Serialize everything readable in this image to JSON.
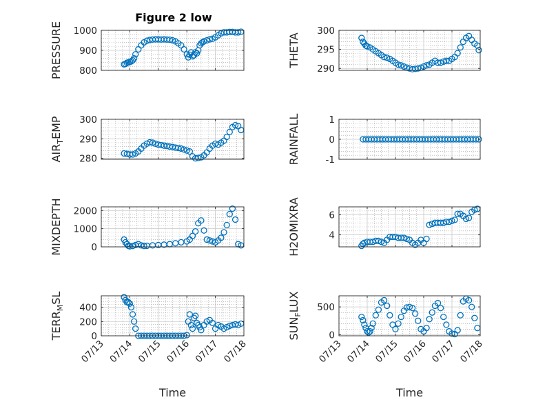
{
  "title": "Figure 2 low",
  "colors": {
    "marker": "#0072BD",
    "axis": "#262626",
    "grid": "#9e9e9e",
    "background": "#ffffff"
  },
  "chart_data": [
    {
      "type": "scatter",
      "title": "Figure 2 low",
      "ylabel": "PRESSURE",
      "xlabel": "",
      "xlim": [
        0,
        5
      ],
      "ylim": [
        800,
        1000
      ],
      "yticks": [
        800,
        900,
        1000
      ],
      "grid": true,
      "x": [
        0.8,
        0.85,
        0.9,
        0.95,
        1.0,
        1.05,
        1.1,
        1.15,
        1.2,
        1.3,
        1.4,
        1.5,
        1.6,
        1.7,
        1.8,
        1.9,
        2.0,
        2.1,
        2.2,
        2.3,
        2.4,
        2.5,
        2.6,
        2.7,
        2.8,
        2.9,
        3.0,
        3.05,
        3.1,
        3.15,
        3.2,
        3.25,
        3.3,
        3.35,
        3.4,
        3.45,
        3.5,
        3.55,
        3.6,
        3.7,
        3.8,
        3.9,
        4.0,
        4.1,
        4.2,
        4.3,
        4.4,
        4.5,
        4.6,
        4.7,
        4.8,
        4.9
      ],
      "y": [
        830,
        832,
        838,
        840,
        842,
        845,
        850,
        860,
        880,
        905,
        925,
        940,
        948,
        952,
        954,
        955,
        955,
        954,
        955,
        954,
        953,
        950,
        945,
        935,
        925,
        905,
        880,
        865,
        878,
        890,
        870,
        875,
        890,
        885,
        900,
        925,
        935,
        940,
        945,
        950,
        955,
        958,
        965,
        975,
        985,
        990,
        990,
        992,
        992,
        990,
        990,
        993
      ]
    },
    {
      "type": "scatter",
      "ylabel": "THETA",
      "xlabel": "",
      "xlim": [
        0,
        5
      ],
      "ylim": [
        289.5,
        300
      ],
      "yticks": [
        290,
        295,
        300
      ],
      "grid": true,
      "x": [
        0.8,
        0.85,
        0.9,
        0.95,
        1.0,
        1.1,
        1.2,
        1.3,
        1.4,
        1.5,
        1.6,
        1.7,
        1.8,
        1.9,
        2.0,
        2.1,
        2.2,
        2.3,
        2.4,
        2.5,
        2.6,
        2.7,
        2.8,
        2.9,
        3.0,
        3.1,
        3.2,
        3.3,
        3.4,
        3.5,
        3.6,
        3.7,
        3.8,
        3.9,
        4.0,
        4.1,
        4.2,
        4.3,
        4.4,
        4.5,
        4.6,
        4.7,
        4.8,
        4.9,
        4.95
      ],
      "y": [
        298,
        297,
        296.5,
        296,
        295.8,
        295.5,
        295,
        294.5,
        294,
        293.5,
        293,
        292.8,
        292.5,
        292,
        291.5,
        291,
        290.8,
        290.5,
        290.2,
        290,
        289.8,
        289.9,
        290,
        290.2,
        290.5,
        290.8,
        291,
        291.5,
        292,
        291.5,
        291.5,
        291.8,
        292,
        292,
        292.5,
        293,
        294,
        295.5,
        297,
        298,
        298.5,
        297.5,
        296.5,
        296,
        294.8
      ]
    },
    {
      "type": "scatter",
      "ylabel": "AIR_TEMP",
      "xlabel": "",
      "xlim": [
        0,
        5
      ],
      "ylim": [
        279.5,
        300
      ],
      "yticks": [
        280,
        290,
        300
      ],
      "grid": true,
      "x": [
        0.8,
        0.9,
        1.0,
        1.1,
        1.2,
        1.3,
        1.4,
        1.5,
        1.6,
        1.7,
        1.8,
        1.9,
        2.0,
        2.1,
        2.2,
        2.3,
        2.4,
        2.5,
        2.6,
        2.7,
        2.8,
        2.9,
        3.0,
        3.1,
        3.2,
        3.3,
        3.4,
        3.5,
        3.6,
        3.7,
        3.8,
        3.9,
        4.0,
        4.1,
        4.2,
        4.3,
        4.4,
        4.5,
        4.6,
        4.7,
        4.8,
        4.9
      ],
      "y": [
        282.5,
        282.3,
        282,
        282,
        282.5,
        283.5,
        285,
        286.5,
        287.5,
        288.2,
        288,
        287.5,
        287,
        286.8,
        286.5,
        286.3,
        286,
        285.8,
        285.5,
        285.3,
        285,
        284.5,
        284,
        283.5,
        281,
        280,
        280.2,
        280.5,
        281.5,
        283,
        285,
        286.5,
        287.5,
        287,
        288,
        289,
        291,
        293.5,
        296,
        297,
        296.5,
        294.5
      ]
    },
    {
      "type": "scatter",
      "ylabel": "RAINFALL",
      "xlabel": "",
      "xlim": [
        0,
        5
      ],
      "ylim": [
        -1,
        1
      ],
      "yticks": [
        -1,
        0,
        1
      ],
      "grid": true,
      "x": [
        0.85,
        0.95,
        1.05,
        1.15,
        1.25,
        1.35,
        1.45,
        1.55,
        1.65,
        1.75,
        1.85,
        1.95,
        2.05,
        2.15,
        2.25,
        2.35,
        2.45,
        2.55,
        2.65,
        2.75,
        2.85,
        2.95,
        3.05,
        3.15,
        3.25,
        3.35,
        3.45,
        3.55,
        3.65,
        3.75,
        3.85,
        3.95,
        4.05,
        4.15,
        4.25,
        4.35,
        4.45,
        4.55,
        4.65,
        4.75,
        4.85,
        4.95
      ],
      "y": [
        0,
        0,
        0,
        0,
        0,
        0,
        0,
        0,
        0,
        0,
        0,
        0,
        0,
        0,
        0,
        0,
        0,
        0,
        0,
        0,
        0,
        0,
        0,
        0,
        0,
        0,
        0,
        0,
        0,
        0,
        0,
        0,
        0,
        0,
        0,
        0,
        0,
        0,
        0,
        0,
        0,
        0
      ]
    },
    {
      "type": "scatter",
      "ylabel": "MIXDEPTH",
      "xlabel": "",
      "xlim": [
        0,
        5
      ],
      "ylim": [
        0,
        2200
      ],
      "yticks": [
        0,
        1000,
        2000
      ],
      "grid": true,
      "x": [
        0.8,
        0.85,
        0.9,
        0.95,
        1.0,
        1.1,
        1.2,
        1.3,
        1.4,
        1.5,
        1.6,
        1.8,
        2.0,
        2.2,
        2.4,
        2.6,
        2.8,
        3.0,
        3.1,
        3.2,
        3.3,
        3.4,
        3.5,
        3.6,
        3.7,
        3.8,
        3.9,
        4.0,
        4.1,
        4.2,
        4.3,
        4.4,
        4.5,
        4.6,
        4.7,
        4.8,
        4.9
      ],
      "y": [
        400,
        250,
        150,
        60,
        30,
        50,
        100,
        150,
        80,
        50,
        60,
        80,
        100,
        120,
        150,
        200,
        250,
        300,
        400,
        600,
        850,
        1300,
        1450,
        900,
        400,
        350,
        300,
        250,
        350,
        500,
        800,
        1200,
        1800,
        2100,
        1500,
        150,
        80
      ]
    },
    {
      "type": "scatter",
      "ylabel": "H2OMIXRA",
      "xlabel": "",
      "xlim": [
        0,
        5
      ],
      "ylim": [
        2.8,
        6.8
      ],
      "yticks": [
        4,
        6
      ],
      "grid": true,
      "x": [
        0.8,
        0.85,
        0.9,
        1.0,
        1.1,
        1.2,
        1.3,
        1.4,
        1.5,
        1.6,
        1.7,
        1.8,
        1.9,
        2.0,
        2.1,
        2.2,
        2.3,
        2.4,
        2.5,
        2.6,
        2.7,
        2.8,
        2.9,
        3.0,
        3.1,
        3.2,
        3.3,
        3.4,
        3.5,
        3.6,
        3.7,
        3.8,
        3.9,
        4.0,
        4.1,
        4.2,
        4.3,
        4.4,
        4.5,
        4.6,
        4.7,
        4.8,
        4.9
      ],
      "y": [
        2.9,
        3.1,
        3.2,
        3.3,
        3.3,
        3.3,
        3.4,
        3.4,
        3.3,
        3.2,
        3.5,
        3.8,
        3.8,
        3.8,
        3.7,
        3.7,
        3.7,
        3.6,
        3.5,
        3.2,
        3.0,
        3.2,
        3.5,
        3.2,
        3.6,
        5.0,
        5.1,
        5.2,
        5.2,
        5.2,
        5.2,
        5.3,
        5.3,
        5.4,
        5.5,
        6.1,
        6.1,
        5.9,
        5.6,
        5.7,
        6.3,
        6.5,
        6.6
      ]
    },
    {
      "type": "scatter",
      "ylabel": "TERR_MSL",
      "xlabel": "Time",
      "xlim": [
        0,
        5
      ],
      "ylim": [
        0,
        560
      ],
      "yticks": [
        0,
        200,
        400
      ],
      "xticks": [
        0,
        1,
        2,
        3,
        4,
        5
      ],
      "xticklabels": [
        "07/13",
        "07/14",
        "07/15",
        "07/16",
        "07/17",
        "07/18"
      ],
      "grid": true,
      "x": [
        0.8,
        0.85,
        0.9,
        0.95,
        1.0,
        1.05,
        1.1,
        1.15,
        1.2,
        1.3,
        1.4,
        1.5,
        1.6,
        1.7,
        1.8,
        1.9,
        2.0,
        2.1,
        2.2,
        2.3,
        2.4,
        2.5,
        2.6,
        2.7,
        2.8,
        2.9,
        3.0,
        3.05,
        3.1,
        3.15,
        3.2,
        3.25,
        3.3,
        3.35,
        3.4,
        3.45,
        3.5,
        3.6,
        3.7,
        3.8,
        3.9,
        4.0,
        4.1,
        4.2,
        4.3,
        4.4,
        4.5,
        4.6,
        4.7,
        4.8,
        4.9
      ],
      "y": [
        540,
        500,
        470,
        470,
        450,
        400,
        300,
        200,
        100,
        0,
        0,
        0,
        0,
        0,
        0,
        0,
        0,
        0,
        0,
        0,
        0,
        0,
        0,
        0,
        0,
        0,
        10,
        200,
        300,
        150,
        100,
        250,
        280,
        180,
        150,
        120,
        80,
        150,
        200,
        220,
        180,
        100,
        150,
        130,
        100,
        120,
        140,
        150,
        160,
        150,
        170
      ]
    },
    {
      "type": "scatter",
      "ylabel": "SUN_FLUX",
      "xlabel": "Time",
      "xlim": [
        0,
        5
      ],
      "ylim": [
        -20,
        700
      ],
      "yticks": [
        0,
        500
      ],
      "xticks": [
        0,
        1,
        2,
        3,
        4,
        5
      ],
      "xticklabels": [
        "07/13",
        "07/14",
        "07/15",
        "07/16",
        "07/17",
        "07/18"
      ],
      "grid": true,
      "x": [
        0.8,
        0.85,
        0.9,
        0.95,
        1.0,
        1.05,
        1.1,
        1.15,
        1.2,
        1.3,
        1.4,
        1.5,
        1.6,
        1.7,
        1.8,
        1.9,
        2.0,
        2.1,
        2.2,
        2.3,
        2.4,
        2.5,
        2.6,
        2.7,
        2.8,
        2.9,
        3.0,
        3.1,
        3.2,
        3.3,
        3.4,
        3.5,
        3.6,
        3.7,
        3.8,
        3.9,
        4.0,
        4.1,
        4.2,
        4.3,
        4.4,
        4.5,
        4.6,
        4.7,
        4.8,
        4.9
      ],
      "y": [
        320,
        260,
        180,
        120,
        60,
        40,
        60,
        120,
        200,
        350,
        450,
        580,
        620,
        520,
        350,
        180,
        100,
        200,
        320,
        430,
        490,
        500,
        480,
        380,
        250,
        100,
        60,
        120,
        280,
        400,
        520,
        570,
        480,
        320,
        180,
        60,
        20,
        10,
        80,
        350,
        600,
        650,
        620,
        500,
        300,
        120
      ]
    }
  ]
}
